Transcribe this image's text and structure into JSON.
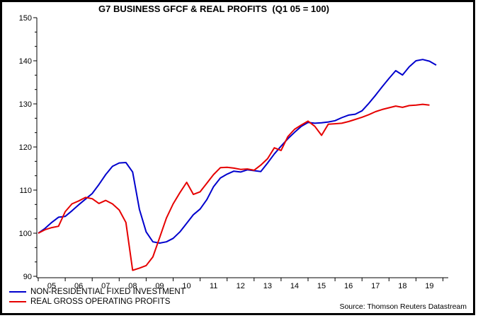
{
  "chart": {
    "title": "G7 BUSINESS GFCF & REAL PROFITS  (Q1 05 = 100)",
    "source": "Source: Thomson Reuters Datastream"
  },
  "chart_data": {
    "type": "line",
    "title": "G7 BUSINESS GFCF & REAL PROFITS  (Q1 05 = 100)",
    "xlabel": "",
    "ylabel": "",
    "ylim": [
      90,
      150
    ],
    "y_ticks": [
      150,
      140,
      130,
      120,
      110,
      100,
      90
    ],
    "y_minor_ticks_per_interval": 2,
    "x_tick_labels": [
      "05",
      "06",
      "07",
      "08",
      "09",
      "10",
      "11",
      "12",
      "13",
      "14",
      "15",
      "16",
      "17",
      "18",
      "19"
    ],
    "frequency": "quarterly",
    "x_start": "2005Q1",
    "grid": false,
    "legend_position": "bottom-left",
    "source": "Source: Thomson Reuters Datastream",
    "series": [
      {
        "name": "NON-RESIDENTIAL FIXED INVESTMENT",
        "color": "#0000cd",
        "end": "2019Q4",
        "values": [
          100.0,
          101.1,
          102.5,
          103.7,
          103.9,
          105.2,
          106.6,
          107.9,
          109.2,
          111.3,
          113.6,
          115.5,
          116.3,
          116.4,
          114.2,
          105.5,
          100.3,
          98.0,
          97.7,
          98.0,
          98.8,
          100.3,
          102.3,
          104.3,
          105.6,
          107.8,
          110.8,
          112.8,
          113.7,
          114.4,
          114.2,
          114.7,
          114.5,
          114.3,
          116.3,
          118.4,
          120.2,
          121.9,
          123.4,
          124.8,
          125.7,
          125.5,
          125.6,
          125.8,
          126.1,
          126.8,
          127.4,
          127.6,
          128.4,
          130.1,
          132.0,
          134.0,
          135.9,
          137.7,
          136.7,
          138.6,
          140.0,
          140.3,
          139.9,
          139.0
        ]
      },
      {
        "name": "REAL GROSS OPERATING PROFITS",
        "color": "#e60000",
        "end": "2019Q3",
        "values": [
          100.0,
          100.8,
          101.3,
          101.6,
          105.0,
          106.8,
          107.5,
          108.3,
          108.0,
          106.9,
          107.6,
          106.8,
          105.4,
          102.5,
          91.4,
          91.9,
          92.5,
          94.5,
          99.0,
          103.5,
          106.8,
          109.4,
          111.8,
          109.0,
          109.6,
          111.6,
          113.6,
          115.2,
          115.3,
          115.1,
          114.8,
          114.9,
          114.6,
          115.8,
          117.3,
          119.8,
          119.2,
          122.4,
          124.1,
          125.1,
          126.0,
          124.8,
          122.7,
          125.3,
          125.4,
          125.5,
          125.9,
          126.4,
          126.9,
          127.5,
          128.2,
          128.7,
          129.1,
          129.5,
          129.2,
          129.6,
          129.7,
          129.9,
          129.7
        ]
      }
    ]
  }
}
